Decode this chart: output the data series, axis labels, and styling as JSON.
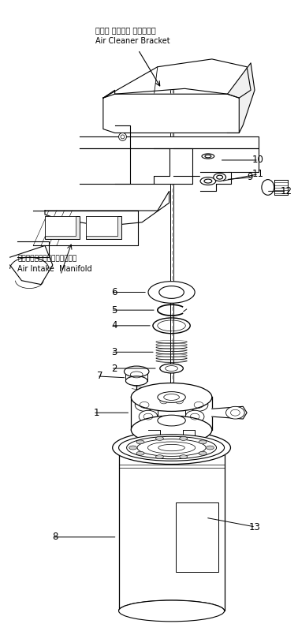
{
  "bg_color": "#ffffff",
  "line_color": "#000000",
  "fig_width": 3.78,
  "fig_height": 8.05,
  "dpi": 100,
  "labels": {
    "air_cleaner_jp": "エアー クリーナ ブラケット",
    "air_cleaner_en": "Air Cleaner Bracket",
    "air_intake_jp": "エアーインテークマニホールド",
    "air_intake_en": "Air Intake  Manifold"
  }
}
